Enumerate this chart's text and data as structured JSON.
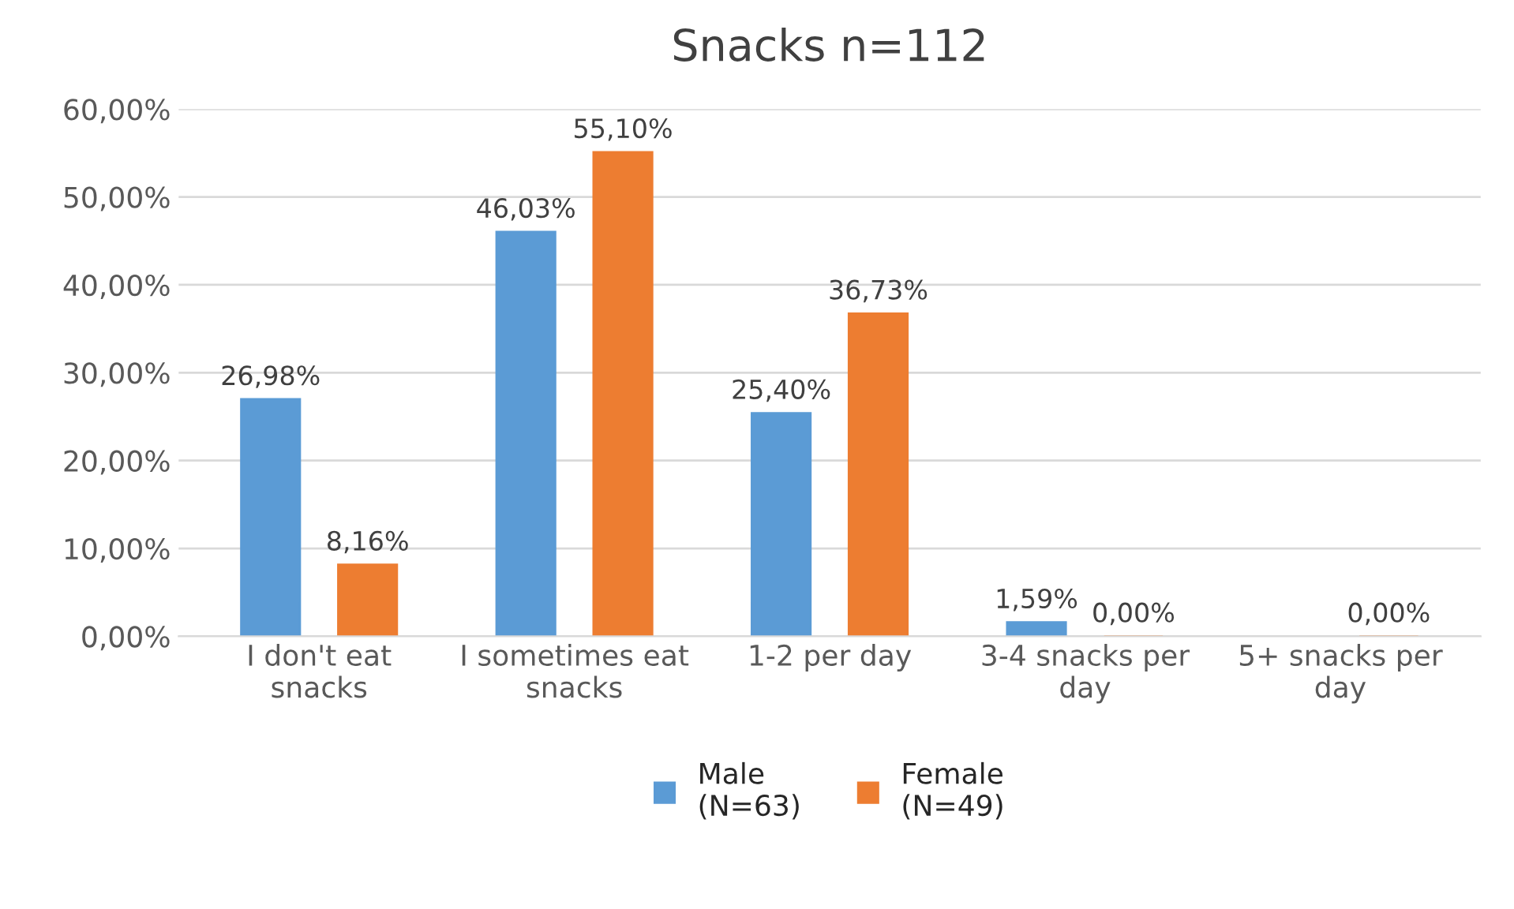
{
  "chart_data": {
    "type": "bar",
    "title": "Snacks n=112",
    "categories": [
      "I don't eat\nsnacks",
      "I sometimes eat\nsnacks",
      "1-2 per day",
      "3-4 snacks per\nday",
      "5+ snacks per\nday"
    ],
    "series": [
      {
        "name": "Male\n(N=63)",
        "color": "#5b9bd5",
        "values": [
          26.98,
          46.03,
          25.4,
          1.59,
          null
        ],
        "value_labels": [
          "26,98%",
          "46,03%",
          "25,40%",
          "1,59%",
          null
        ]
      },
      {
        "name": "Female\n(N=49)",
        "color": "#ed7d31",
        "values": [
          8.16,
          55.1,
          36.73,
          0.0,
          0.0
        ],
        "value_labels": [
          "8,16%",
          "55,10%",
          "36,73%",
          "0,00%",
          "0,00%"
        ]
      }
    ],
    "ylim": [
      0,
      60
    ],
    "yticks": [
      {
        "value": 0,
        "label": "0,00%"
      },
      {
        "value": 10,
        "label": "10,00%"
      },
      {
        "value": 20,
        "label": "20,00%"
      },
      {
        "value": 30,
        "label": "30,00%"
      },
      {
        "value": 40,
        "label": "40,00%"
      },
      {
        "value": 50,
        "label": "50,00%"
      },
      {
        "value": 60,
        "label": "60,00%"
      }
    ],
    "grid": "y",
    "legend": "bottom"
  }
}
